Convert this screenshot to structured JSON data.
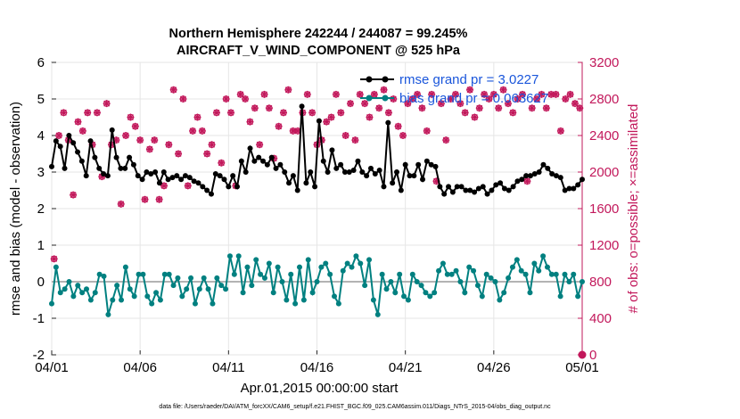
{
  "chart_data": {
    "type": "line",
    "title": "Northern Hemisphere 242244 / 244087 = 99.245%",
    "subtitle": "AIRCRAFT_V_WIND_COMPONENT @ 525 hPa",
    "xlabel": "Apr.01,2015 00:00:00 start",
    "ylabel": "rmse and bias (model - observation)",
    "ylabel_right": "# of obs: o=possible; ×=assimilated",
    "footer": "data file: /Users/raeder/DAI/ATM_forcXX/CAM6_setup/f.e21.FHIST_BGC.f09_025.CAM6assim.011/Diags_NTrS_2015-04/obs_diag_output.nc",
    "x_tick_labels": [
      "04/01",
      "04/06",
      "04/11",
      "04/16",
      "04/21",
      "04/26",
      "05/01"
    ],
    "x_range_days": [
      0,
      30
    ],
    "ylim_left": [
      -2,
      6
    ],
    "y_ticks_left": [
      "-2",
      "-1",
      "0",
      "1",
      "2",
      "3",
      "4",
      "5",
      "6"
    ],
    "ylim_right": [
      0,
      3200
    ],
    "y_ticks_right": [
      "0",
      "400",
      "800",
      "1200",
      "1600",
      "2000",
      "2400",
      "2800",
      "3200"
    ],
    "grid": true,
    "legend_position": "top-right",
    "colors": {
      "rmse": "#000000",
      "bias": "#008080",
      "obs": "#c2185b",
      "zero_line": "#b3b3b3",
      "legend_text": "#1a56db"
    },
    "series": [
      {
        "name": "rmse grand pr = 3.0227",
        "axis": "left",
        "values": [
          3.15,
          3.85,
          3.7,
          3.1,
          4.0,
          3.8,
          3.55,
          3.3,
          2.9,
          3.85,
          3.4,
          3.1,
          2.95,
          2.9,
          4.15,
          3.4,
          3.1,
          3.1,
          3.4,
          3.2,
          2.9,
          2.8,
          3.0,
          2.95,
          3.0,
          2.7,
          3.0,
          2.8,
          2.85,
          2.9,
          2.8,
          2.9,
          2.85,
          2.75,
          2.7,
          2.6,
          2.5,
          2.4,
          2.95,
          2.9,
          2.8,
          2.6,
          2.9,
          2.6,
          3.3,
          3.0,
          3.65,
          3.3,
          3.4,
          3.3,
          3.2,
          3.4,
          3.1,
          3.2,
          3.0,
          2.7,
          2.9,
          2.5,
          4.8,
          2.7,
          3.0,
          2.6,
          4.4,
          3.3,
          3.0,
          3.6,
          3.1,
          3.2,
          3.0,
          3.0,
          3.05,
          3.3,
          3.0,
          2.9,
          3.1,
          2.95,
          3.05,
          2.6,
          4.35,
          2.7,
          3.0,
          2.5,
          3.2,
          2.9,
          2.9,
          3.2,
          2.8,
          3.3,
          3.2,
          3.15,
          2.6,
          2.4,
          2.6,
          2.45,
          2.6,
          2.6,
          2.5,
          2.5,
          2.45,
          2.55,
          2.6,
          2.4,
          2.5,
          2.65,
          2.7,
          2.55,
          2.5,
          2.6,
          2.75,
          2.8,
          2.9,
          2.9,
          2.95,
          3.0,
          3.2,
          3.1,
          2.95,
          2.9,
          2.85,
          2.5,
          2.55,
          2.55,
          2.65,
          2.8
        ]
      },
      {
        "name": "bias grand pr = 0.063627",
        "axis": "left",
        "values": [
          -0.6,
          0.4,
          -0.3,
          -0.2,
          0.0,
          -0.4,
          -0.1,
          -0.3,
          -0.2,
          -0.5,
          -0.3,
          0.2,
          0.15,
          -0.9,
          -0.5,
          -0.1,
          -0.5,
          0.4,
          -0.2,
          -0.4,
          0.2,
          0.2,
          -0.4,
          -0.6,
          -0.3,
          -0.5,
          0.2,
          0.2,
          -0.1,
          0.1,
          -0.4,
          -0.2,
          0.1,
          -0.6,
          -0.2,
          0.1,
          -0.2,
          -0.6,
          0.1,
          -0.1,
          -0.2,
          0.7,
          0.2,
          0.7,
          -0.3,
          0.4,
          -0.1,
          0.6,
          0.2,
          0.1,
          0.5,
          -0.3,
          0.4,
          0.0,
          -0.5,
          0.2,
          -0.6,
          0.4,
          -0.5,
          0.6,
          -0.3,
          0.0,
          0.4,
          0.5,
          0.2,
          -0.4,
          -0.6,
          0.3,
          0.5,
          0.4,
          0.7,
          0.5,
          -0.1,
          0.6,
          -0.5,
          -0.9,
          0.2,
          -0.2,
          0.0,
          -0.3,
          0.2,
          -0.4,
          -0.5,
          0.2,
          0.0,
          -0.1,
          -0.3,
          -0.4,
          -0.3,
          0.3,
          0.5,
          0.2,
          0.2,
          0.3,
          0.0,
          -0.3,
          0.4,
          0.3,
          -0.1,
          -0.4,
          0.2,
          0.1,
          0.0,
          -0.5,
          -0.3,
          0.1,
          0.4,
          0.6,
          0.3,
          0.2,
          -0.3,
          0.5,
          0.3,
          0.7,
          0.4,
          0.2,
          0.2,
          -0.4,
          0.2,
          0.0,
          0.2,
          -0.4,
          0.0
        ]
      }
    ],
    "obs_possible": [
      1050,
      2400,
      2650,
      2350,
      1750,
      2550,
      2450,
      2650,
      2300,
      2650,
      1950,
      2750,
      2300,
      2350,
      1650,
      2400,
      2600,
      2500,
      2350,
      1700,
      2250,
      2350,
      1700,
      1850,
      2300,
      2900,
      2200,
      2800,
      1850,
      2450,
      2600,
      2450,
      2200,
      2300,
      2650,
      2100,
      2800,
      2650,
      1850,
      2850,
      2800,
      2550,
      2700,
      2300,
      2850,
      2700,
      2150,
      2500,
      2650,
      2900,
      2450,
      2450,
      2650,
      2850,
      2650,
      2300,
      2350,
      2550,
      2600,
      2850,
      2650,
      2400,
      2750,
      2350,
      2850,
      2750,
      2600,
      2850,
      2700,
      2900,
      2650,
      2800,
      2500,
      2400,
      2750,
      2800,
      2850,
      2700,
      2450,
      2850,
      1900,
      2750,
      2350,
      2800,
      2850,
      2750,
      2650,
      2900,
      2600,
      2700,
      2850,
      2800,
      2850,
      2700,
      2900,
      2750,
      2650,
      2800,
      2850,
      1900,
      2700,
      2800,
      2850,
      2700,
      2850,
      2850,
      2450,
      2800,
      2850,
      2750,
      2700
    ]
  }
}
